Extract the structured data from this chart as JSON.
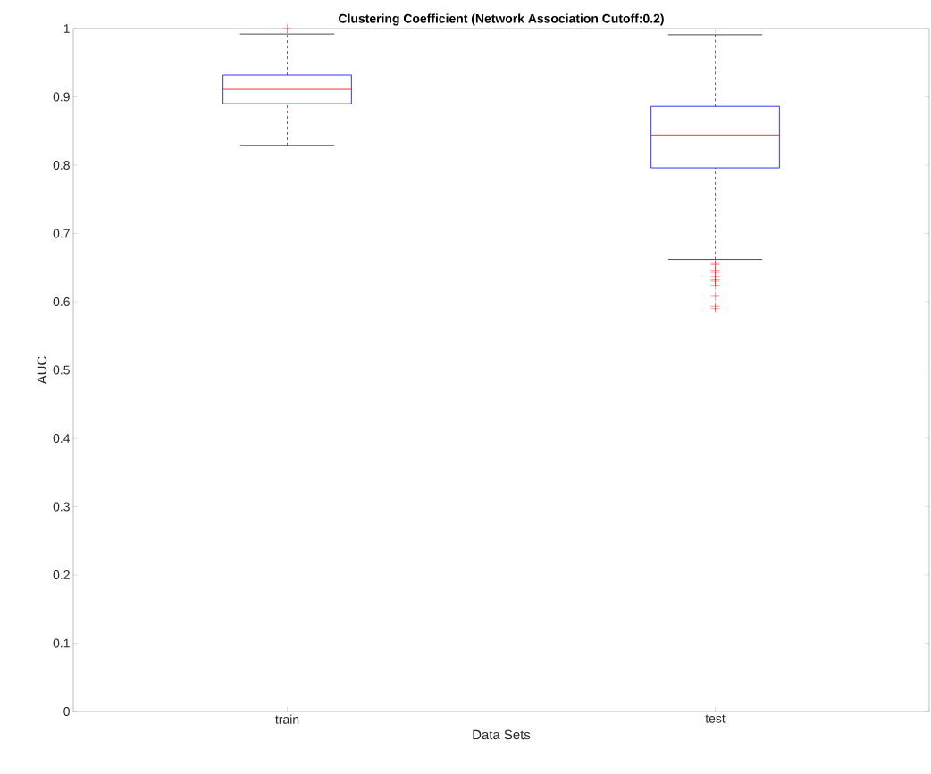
{
  "chart_data": {
    "type": "box",
    "title": "Clustering Coefficient (Network Association Cutoff:0.2)",
    "xlabel": "Data Sets",
    "ylabel": "AUC",
    "categories": [
      "train",
      "test"
    ],
    "boxes": [
      {
        "low": 0.829,
        "q1": 0.89,
        "median": 0.911,
        "q3": 0.932,
        "high": 0.992,
        "outliers": [
          1.0
        ]
      },
      {
        "low": 0.662,
        "q1": 0.796,
        "median": 0.844,
        "q3": 0.886,
        "high": 0.991,
        "outliers": [
          0.656,
          0.654,
          0.645,
          0.643,
          0.637,
          0.632,
          0.63,
          0.624,
          0.608,
          0.593,
          0.59
        ]
      }
    ],
    "color": "#0000ff",
    "ylim": [
      0,
      1
    ],
    "yticks": [
      0,
      0.1,
      0.2,
      0.3,
      0.4,
      0.5,
      0.6,
      0.7,
      0.8,
      0.9,
      1
    ],
    "marker": "cross",
    "grid": false
  }
}
